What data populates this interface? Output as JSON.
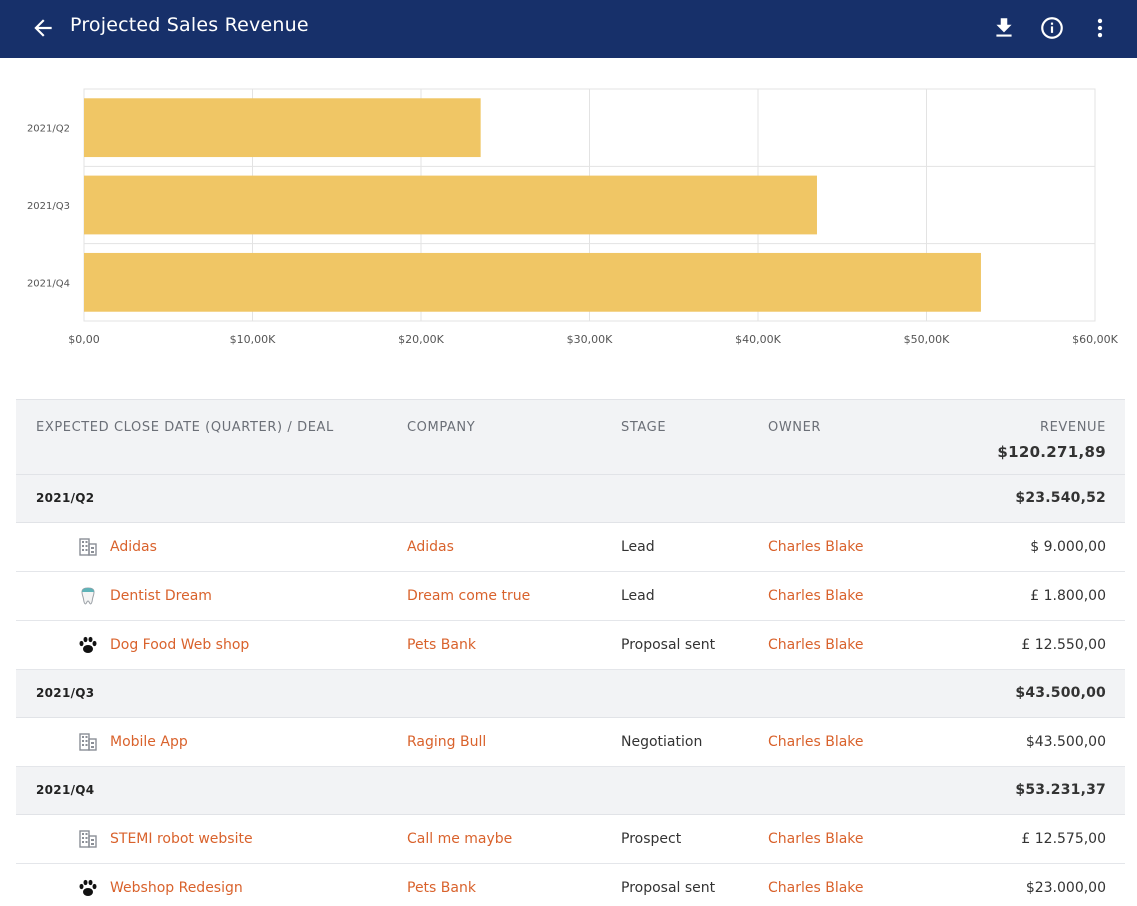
{
  "header": {
    "title": "Projected Sales Revenue",
    "back_icon": "arrow-left-icon",
    "actions": [
      "download-icon",
      "info-icon",
      "more-vert-icon"
    ]
  },
  "colors": {
    "header_bg": "#17306a",
    "bar": "#f0c665",
    "link": "#d9622c",
    "row_group_bg": "#f2f3f5"
  },
  "chart_data": {
    "type": "bar",
    "orientation": "horizontal",
    "categories": [
      "2021/Q2",
      "2021/Q3",
      "2021/Q4"
    ],
    "values": [
      23540.52,
      43500.0,
      53231.37
    ],
    "xlim": [
      0,
      60000
    ],
    "xticks": [
      "$0,00",
      "$10,00K",
      "$20,00K",
      "$30,00K",
      "$40,00K",
      "$50,00K",
      "$60,00K"
    ],
    "grid": true,
    "bar_color": "#f0c665"
  },
  "table": {
    "columns": {
      "deal": "EXPECTED CLOSE DATE (QUARTER) / DEAL",
      "company": "COMPANY",
      "stage": "STAGE",
      "owner": "OWNER",
      "revenue": "REVENUE"
    },
    "grand_total": "$120.271,89",
    "groups": [
      {
        "label": "2021/Q2",
        "total": "$23.540,52",
        "rows": [
          {
            "icon": "building-icon",
            "deal": "Adidas",
            "company": "Adidas",
            "stage": "Lead",
            "owner": "Charles Blake",
            "revenue": "$ 9.000,00"
          },
          {
            "icon": "tooth-icon",
            "deal": "Dentist Dream",
            "company": "Dream come true",
            "stage": "Lead",
            "owner": "Charles Blake",
            "revenue": "£ 1.800,00"
          },
          {
            "icon": "paw-icon",
            "deal": "Dog Food Web shop",
            "company": "Pets Bank",
            "stage": "Proposal sent",
            "owner": "Charles Blake",
            "revenue": "£ 12.550,00"
          }
        ]
      },
      {
        "label": "2021/Q3",
        "total": "$43.500,00",
        "rows": [
          {
            "icon": "building-icon",
            "deal": "Mobile App",
            "company": "Raging Bull",
            "stage": "Negotiation",
            "owner": "Charles Blake",
            "revenue": "$43.500,00"
          }
        ]
      },
      {
        "label": "2021/Q4",
        "total": "$53.231,37",
        "rows": [
          {
            "icon": "building-icon",
            "deal": "STEMI robot website",
            "company": "Call me maybe",
            "stage": "Prospect",
            "owner": "Charles Blake",
            "revenue": "£ 12.575,00"
          },
          {
            "icon": "paw-icon",
            "deal": "Webshop Redesign",
            "company": "Pets Bank",
            "stage": "Proposal sent",
            "owner": "Charles Blake",
            "revenue": "$23.000,00"
          }
        ]
      }
    ]
  }
}
